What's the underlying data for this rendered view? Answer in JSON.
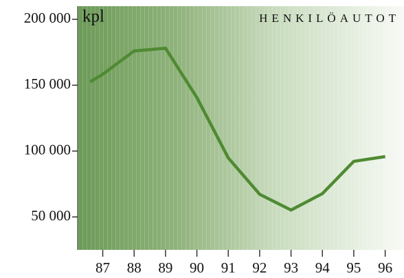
{
  "chart_data": {
    "type": "line",
    "title": "HENKILÖAUTOT",
    "y_label": "kpl",
    "x": [
      86.6,
      87,
      88,
      89,
      90,
      91,
      92,
      93,
      94,
      95,
      96
    ],
    "series": [
      {
        "name": "HENKILÖAUTOT",
        "color": "#4f8a32",
        "values": [
          152600,
          158300,
          176000,
          178100,
          140600,
          94800,
          67200,
          55200,
          67700,
          92200,
          95800
        ]
      }
    ],
    "xlim": [
      86.2,
      96.6
    ],
    "xticks": [
      87,
      88,
      89,
      90,
      91,
      92,
      93,
      94,
      95,
      96
    ],
    "ylim": [
      25000,
      210000
    ],
    "yticks": [
      {
        "value": 50000,
        "label": "50 000"
      },
      {
        "value": 100000,
        "label": "100 000"
      },
      {
        "value": 150000,
        "label": "150 000"
      },
      {
        "value": 200000,
        "label": "200 000"
      }
    ]
  }
}
